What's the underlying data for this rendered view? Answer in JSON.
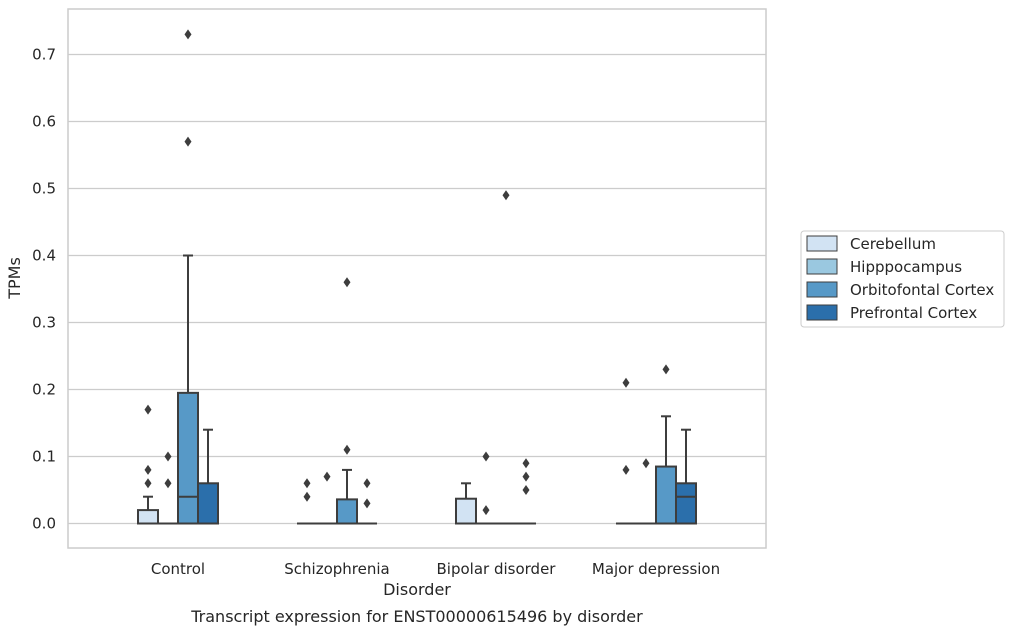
{
  "chart_data": {
    "type": "box",
    "title": "",
    "caption": "Transcript expression for ENST00000615496 by disorder",
    "xlabel": "Disorder",
    "ylabel": "TPMs",
    "ylim": [
      -0.035,
      0.768
    ],
    "yticks": [
      "0.0",
      "0.1",
      "0.2",
      "0.3",
      "0.4",
      "0.5",
      "0.6",
      "0.7"
    ],
    "grid": true,
    "legend_position": "right",
    "categories": [
      "Control",
      "Schizophrenia",
      "Bipolar disorder",
      "Major depression"
    ],
    "series": [
      {
        "name": "Cerebellum",
        "color": "#d2e3f3",
        "boxes": [
          {
            "q1": 0.0,
            "median": 0.0,
            "q3": 0.02,
            "whisker_low": 0.0,
            "whisker_high": 0.04,
            "outliers": [
              0.06,
              0.08,
              0.17
            ]
          },
          {
            "q1": 0.0,
            "median": 0.0,
            "q3": 0.0,
            "whisker_low": 0.0,
            "whisker_high": 0.0,
            "outliers": [
              0.04,
              0.06
            ]
          },
          {
            "q1": 0.0,
            "median": 0.0,
            "q3": 0.037,
            "whisker_low": 0.0,
            "whisker_high": 0.06,
            "outliers": []
          },
          {
            "q1": 0.0,
            "median": 0.0,
            "q3": 0.0,
            "whisker_low": 0.0,
            "whisker_high": 0.0,
            "outliers": [
              0.08,
              0.21
            ]
          }
        ]
      },
      {
        "name": "Hipppocampus",
        "color": "#9ac8e0",
        "boxes": [
          {
            "q1": 0.0,
            "median": 0.0,
            "q3": 0.0,
            "whisker_low": 0.0,
            "whisker_high": 0.0,
            "outliers": [
              0.06,
              0.1
            ]
          },
          {
            "q1": 0.0,
            "median": 0.0,
            "q3": 0.0,
            "whisker_low": 0.0,
            "whisker_high": 0.0,
            "outliers": [
              0.07
            ]
          },
          {
            "q1": 0.0,
            "median": 0.0,
            "q3": 0.0,
            "whisker_low": 0.0,
            "whisker_high": 0.0,
            "outliers": [
              0.02,
              0.1
            ]
          },
          {
            "q1": 0.0,
            "median": 0.0,
            "q3": 0.0,
            "whisker_low": 0.0,
            "whisker_high": 0.0,
            "outliers": [
              0.09
            ]
          }
        ]
      },
      {
        "name": "Orbitofontal Cortex",
        "color": "#5799c7",
        "boxes": [
          {
            "q1": 0.0,
            "median": 0.04,
            "q3": 0.195,
            "whisker_low": 0.0,
            "whisker_high": 0.4,
            "outliers": [
              0.57,
              0.73
            ]
          },
          {
            "q1": 0.0,
            "median": 0.0,
            "q3": 0.036,
            "whisker_low": 0.0,
            "whisker_high": 0.08,
            "outliers": [
              0.11,
              0.36
            ]
          },
          {
            "q1": 0.0,
            "median": 0.0,
            "q3": 0.0,
            "whisker_low": 0.0,
            "whisker_high": 0.0,
            "outliers": [
              0.49
            ]
          },
          {
            "q1": 0.0,
            "median": 0.0,
            "q3": 0.085,
            "whisker_low": 0.0,
            "whisker_high": 0.16,
            "outliers": [
              0.23
            ]
          }
        ]
      },
      {
        "name": "Prefrontal Cortex",
        "color": "#2b6fab",
        "boxes": [
          {
            "q1": 0.0,
            "median": 0.0,
            "q3": 0.06,
            "whisker_low": 0.0,
            "whisker_high": 0.14,
            "outliers": []
          },
          {
            "q1": 0.0,
            "median": 0.0,
            "q3": 0.0,
            "whisker_low": 0.0,
            "whisker_high": 0.0,
            "outliers": [
              0.03,
              0.06
            ]
          },
          {
            "q1": 0.0,
            "median": 0.0,
            "q3": 0.0,
            "whisker_low": 0.0,
            "whisker_high": 0.0,
            "outliers": [
              0.05,
              0.07,
              0.09
            ]
          },
          {
            "q1": 0.0,
            "median": 0.04,
            "q3": 0.06,
            "whisker_low": 0.0,
            "whisker_high": 0.14,
            "outliers": []
          }
        ]
      }
    ]
  }
}
